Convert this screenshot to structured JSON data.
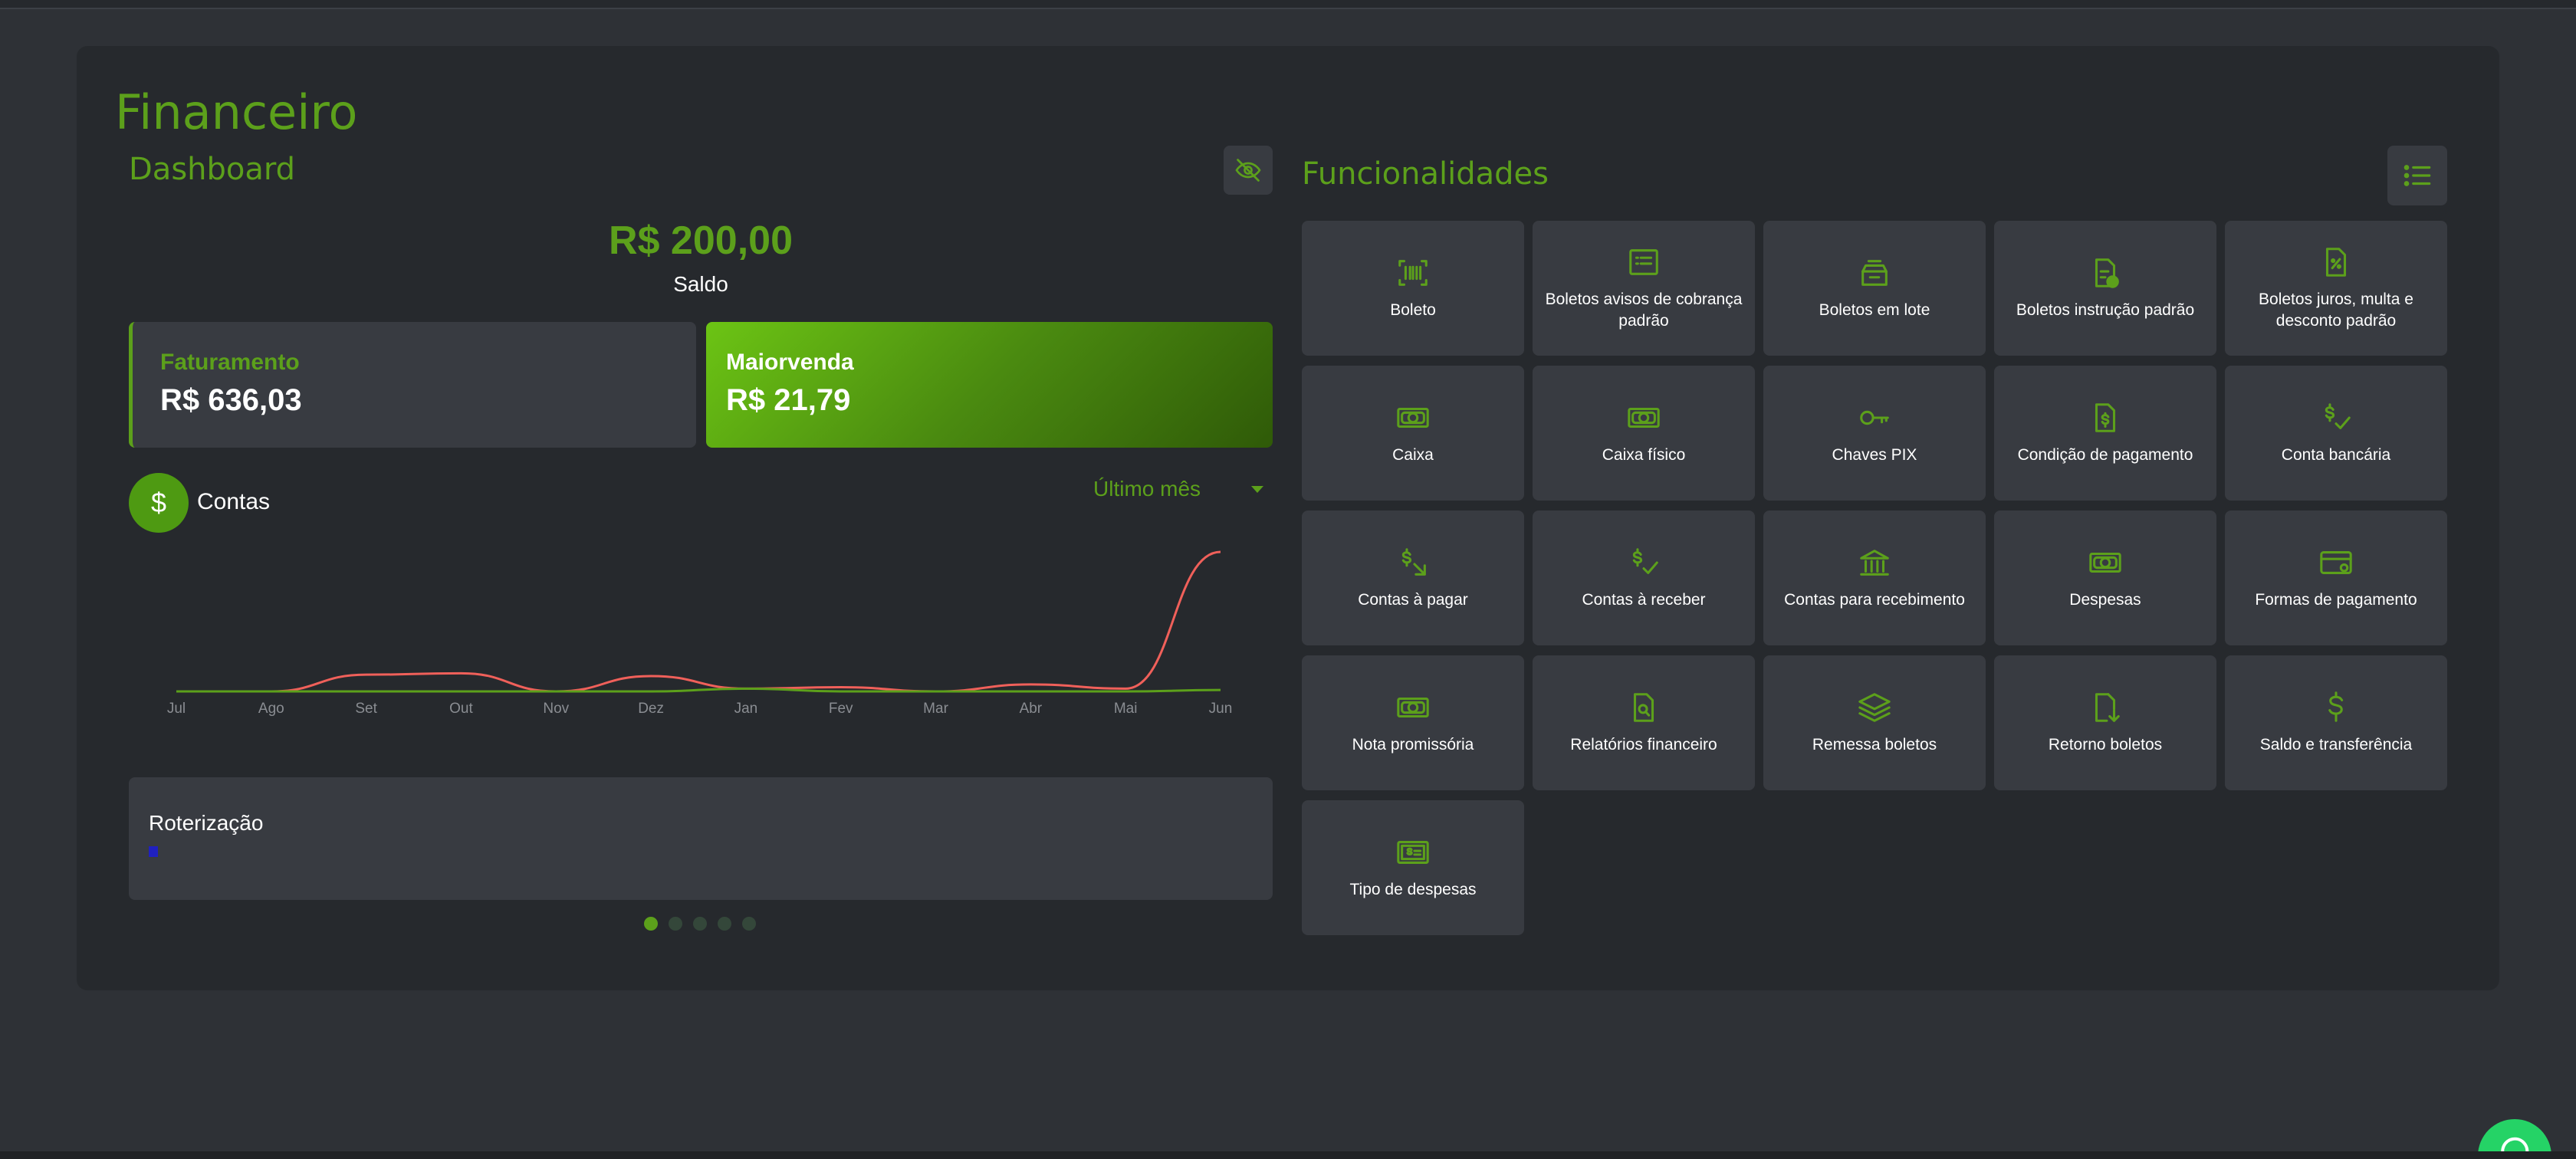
{
  "page": {
    "title": "Financeiro"
  },
  "dashboard": {
    "title": "Dashboard",
    "balance": "R$ 200,00",
    "balance_label": "Saldo",
    "stats": [
      {
        "label": "Faturamento",
        "value": "R$ 636,03"
      },
      {
        "label": "Maiorvenda",
        "value": "R$ 21,79"
      }
    ],
    "contas_label": "Contas",
    "period": "Último mês",
    "roteirizacao_title": "Roterização"
  },
  "chart_data": {
    "type": "line",
    "categories": [
      "Jul",
      "Ago",
      "Set",
      "Out",
      "Nov",
      "Dez",
      "Jan",
      "Fev",
      "Mar",
      "Abr",
      "Mai",
      "Jun"
    ],
    "series": [
      {
        "color": "#f0605a",
        "values": [
          0,
          0,
          12,
          13,
          0,
          11,
          2,
          3,
          0,
          5,
          2,
          100
        ]
      },
      {
        "color": "#5ca01b",
        "values": [
          0,
          0,
          0,
          0,
          0,
          0,
          2,
          0,
          0,
          0,
          0,
          1
        ]
      }
    ],
    "ylim": [
      0,
      100
    ],
    "grid": false
  },
  "carousel": {
    "count": 5,
    "active": 0
  },
  "features": {
    "title": "Funcionalidades",
    "items": [
      {
        "label": "Boleto",
        "icon": "barcode-icon"
      },
      {
        "label": "Boletos avisos de cobrança padrão",
        "icon": "list-doc-icon"
      },
      {
        "label": "Boletos em lote",
        "icon": "inbox-stack-icon"
      },
      {
        "label": "Boletos instrução padrão",
        "icon": "doc-info-icon"
      },
      {
        "label": "Boletos juros, multa e desconto padrão",
        "icon": "doc-percent-icon"
      },
      {
        "label": "Caixa",
        "icon": "cash-icon"
      },
      {
        "label": "Caixa físico",
        "icon": "cash-icon"
      },
      {
        "label": "Chaves PIX",
        "icon": "key-icon"
      },
      {
        "label": "Condição de pagamento",
        "icon": "doc-dollar-icon"
      },
      {
        "label": "Conta bancária",
        "icon": "dollar-check-icon"
      },
      {
        "label": "Contas à pagar",
        "icon": "dollar-out-icon"
      },
      {
        "label": "Contas à receber",
        "icon": "dollar-check-icon"
      },
      {
        "label": "Contas para recebimento",
        "icon": "bank-icon"
      },
      {
        "label": "Despesas",
        "icon": "cash-icon"
      },
      {
        "label": "Formas de pagamento",
        "icon": "card-gear-icon"
      },
      {
        "label": "Nota promissória",
        "icon": "cash-icon"
      },
      {
        "label": "Relatórios financeiro",
        "icon": "doc-search-icon"
      },
      {
        "label": "Remessa boletos",
        "icon": "layers-icon"
      },
      {
        "label": "Retorno boletos",
        "icon": "doc-download-icon"
      },
      {
        "label": "Saldo e transferência",
        "icon": "dollar-icon"
      },
      {
        "label": "Tipo de despesas",
        "icon": "bill-icon"
      }
    ]
  },
  "colors": {
    "accent": "#5ca01b",
    "tile": "#383b41",
    "card": "#26292d",
    "background": "#2e3136"
  }
}
